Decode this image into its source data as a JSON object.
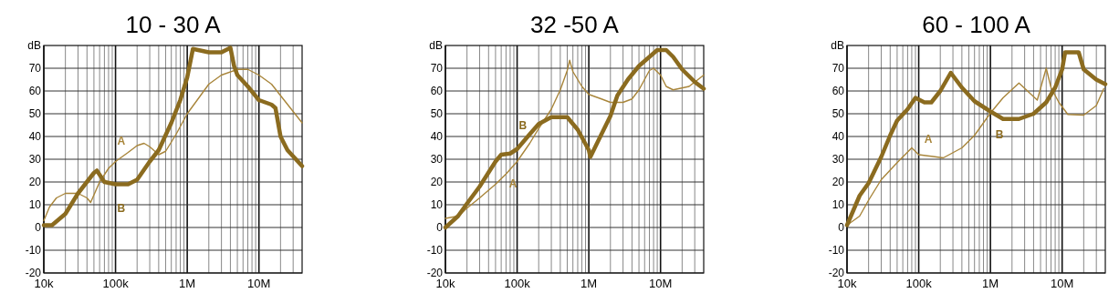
{
  "chart_data": [
    {
      "type": "line",
      "title": "10 - 30 A",
      "ylabel": "dB",
      "log": "x",
      "grid": true,
      "line_style": "solid",
      "marker": "none",
      "xlim": [
        10000,
        40000000
      ],
      "ylim": [
        -20,
        80
      ],
      "xticks": [
        {
          "value": 10000,
          "label": "10k"
        },
        {
          "value": 100000,
          "label": "100k"
        },
        {
          "value": 1000000,
          "label": "1M"
        },
        {
          "value": 10000000,
          "label": "10M"
        }
      ],
      "yticks": [
        -20,
        -10,
        0,
        10,
        20,
        30,
        40,
        50,
        60,
        70
      ],
      "series": [
        {
          "name": "A",
          "color": "#a8853a",
          "x": [
            10000,
            12000,
            15000,
            20000,
            30000,
            40000,
            45000,
            60000,
            80000,
            100000,
            150000,
            200000,
            250000,
            300000,
            400000,
            500000,
            700000,
            1000000,
            2000000,
            3000000,
            5000000,
            7000000,
            10000000,
            15000000,
            20000000,
            40000000
          ],
          "values": [
            3,
            9,
            13,
            15,
            15,
            13,
            11,
            20,
            26,
            29,
            33,
            36,
            37,
            35.5,
            32,
            33.5,
            41,
            50,
            63,
            67,
            69.5,
            69.5,
            67,
            63,
            58,
            46
          ]
        },
        {
          "name": "B",
          "color": "#8b6b1f",
          "x": [
            10000,
            13000,
            20000,
            30000,
            50000,
            55000,
            70000,
            100000,
            150000,
            200000,
            300000,
            400000,
            600000,
            800000,
            1000000,
            1200000,
            2000000,
            3000000,
            4000000,
            4500000,
            5000000,
            7000000,
            10000000,
            15000000,
            17000000,
            20000000,
            25000000,
            40000000
          ],
          "values": [
            1,
            1,
            6,
            15,
            24,
            25,
            20,
            19,
            19,
            21,
            29,
            34,
            46,
            56,
            66,
            78.5,
            77,
            77,
            79,
            71,
            67,
            62,
            56,
            54,
            52.5,
            40,
            34,
            27
          ]
        }
      ]
    },
    {
      "type": "line",
      "title": "32 -50 A",
      "ylabel": "dB",
      "log": "x",
      "grid": true,
      "line_style": "solid",
      "marker": "none",
      "xlim": [
        10000,
        40000000
      ],
      "ylim": [
        -20,
        80
      ],
      "xticks": [
        {
          "value": 10000,
          "label": "10k"
        },
        {
          "value": 100000,
          "label": "100k"
        },
        {
          "value": 1000000,
          "label": "1M"
        },
        {
          "value": 10000000,
          "label": "10M"
        }
      ],
      "yticks": [
        -20,
        -10,
        0,
        10,
        20,
        30,
        40,
        50,
        60,
        70
      ],
      "series": [
        {
          "name": "A",
          "color": "#a8853a",
          "x": [
            10000,
            15000,
            20000,
            30000,
            50000,
            70000,
            100000,
            150000,
            200000,
            300000,
            400000,
            500000,
            540000,
            600000,
            800000,
            1000000,
            1500000,
            2000000,
            3000000,
            4000000,
            5000000,
            7000000,
            8000000,
            10000000,
            12000000,
            15000000,
            25000000,
            40000000
          ],
          "values": [
            4,
            5,
            8.5,
            13,
            19,
            23.5,
            29,
            37,
            43.5,
            52,
            60.5,
            69,
            73.5,
            68.5,
            62,
            58.5,
            56.5,
            55,
            55,
            56.5,
            60.5,
            69,
            70,
            67,
            62,
            60.5,
            62,
            67
          ]
        },
        {
          "name": "B",
          "color": "#8b6b1f",
          "x": [
            10000,
            15000,
            20000,
            30000,
            50000,
            60000,
            80000,
            100000,
            150000,
            200000,
            300000,
            500000,
            700000,
            1000000,
            1050000,
            1500000,
            2000000,
            2500000,
            3500000,
            5000000,
            7000000,
            9000000,
            12000000,
            15000000,
            20000000,
            30000000,
            40000000
          ],
          "values": [
            0,
            5,
            10.5,
            18,
            29,
            32,
            32.5,
            34.5,
            41,
            45.5,
            48.5,
            48.5,
            43,
            34,
            31,
            41,
            49,
            58,
            65,
            71,
            75,
            78,
            78,
            75,
            69.5,
            64,
            61
          ]
        }
      ]
    },
    {
      "type": "line",
      "title": "60 - 100 A",
      "ylabel": "dB",
      "log": "x",
      "grid": true,
      "line_style": "solid",
      "marker": "none",
      "xlim": [
        10000,
        40000000
      ],
      "ylim": [
        -20,
        80
      ],
      "xticks": [
        {
          "value": 10000,
          "label": "10k"
        },
        {
          "value": 100000,
          "label": "100k"
        },
        {
          "value": 1000000,
          "label": "1M"
        },
        {
          "value": 10000000,
          "label": "10M"
        }
      ],
      "yticks": [
        -20,
        -10,
        0,
        10,
        20,
        30,
        40,
        50,
        60,
        70
      ],
      "series": [
        {
          "name": "A",
          "color": "#a8853a",
          "x": [
            10000,
            15000,
            20000,
            30000,
            50000,
            80000,
            100000,
            150000,
            220000,
            400000,
            600000,
            1000000,
            1500000,
            2500000,
            4000000,
            4500000,
            6000000,
            7000000,
            9000000,
            12000000,
            20000000,
            30000000,
            38000000
          ],
          "values": [
            1,
            5,
            12,
            21,
            28.5,
            35,
            32,
            31.3,
            30.6,
            35,
            40.5,
            50.3,
            57,
            63.5,
            57.5,
            56,
            70,
            61.5,
            55,
            49.7,
            49.4,
            53.6,
            61
          ]
        },
        {
          "name": "B",
          "color": "#8b6b1f",
          "x": [
            10000,
            15000,
            20000,
            30000,
            40000,
            50000,
            70000,
            90000,
            120000,
            150000,
            200000,
            280000,
            400000,
            600000,
            1000000,
            1500000,
            2500000,
            4000000,
            6000000,
            8000000,
            10000000,
            11000000,
            17000000,
            20000000,
            30000000,
            40000000
          ],
          "values": [
            1,
            14,
            19.5,
            31,
            40.5,
            47,
            52,
            57,
            55,
            55,
            60,
            68,
            61.5,
            55.5,
            51,
            47.7,
            47.7,
            50,
            55,
            61.5,
            69.5,
            77,
            77,
            69.5,
            65,
            63
          ]
        }
      ]
    }
  ]
}
